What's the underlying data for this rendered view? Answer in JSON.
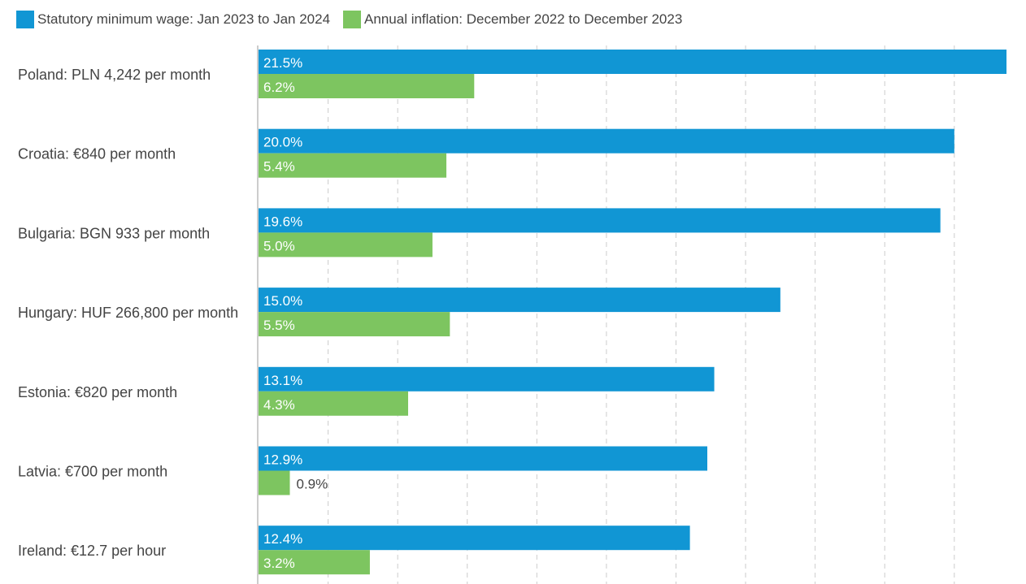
{
  "legend": {
    "items": [
      {
        "label": "Statutory minimum wage: Jan 2023 to Jan 2024",
        "color": "#1196D4"
      },
      {
        "label": "Annual inflation: December 2022 to December 2023",
        "color": "#7DC560"
      }
    ]
  },
  "chart_data": {
    "type": "bar",
    "orientation": "horizontal",
    "grid": true,
    "xlim": [
      0,
      21.5
    ],
    "categories": [
      "Poland: PLN 4,242 per month",
      "Croatia: €840 per month",
      "Bulgaria: BGN 933 per month",
      "Hungary: HUF 266,800 per month",
      "Estonia: €820 per month",
      "Latvia: €700 per month",
      "Ireland: €12.7 per hour"
    ],
    "series": [
      {
        "name": "Statutory minimum wage: Jan 2023 to Jan 2024",
        "color": "#1196D4",
        "values": [
          21.5,
          20.0,
          19.6,
          15.0,
          13.1,
          12.9,
          12.4
        ],
        "labels": [
          "21.5%",
          "20.0%",
          "19.6%",
          "15.0%",
          "13.1%",
          "12.9%",
          "12.4%"
        ]
      },
      {
        "name": "Annual inflation: December 2022 to December 2023",
        "color": "#7DC560",
        "values": [
          6.2,
          5.4,
          5.0,
          5.5,
          4.3,
          0.9,
          3.2
        ],
        "labels": [
          "6.2%",
          "5.4%",
          "5.0%",
          "5.5%",
          "4.3%",
          "0.9%",
          "3.2%"
        ]
      }
    ]
  }
}
